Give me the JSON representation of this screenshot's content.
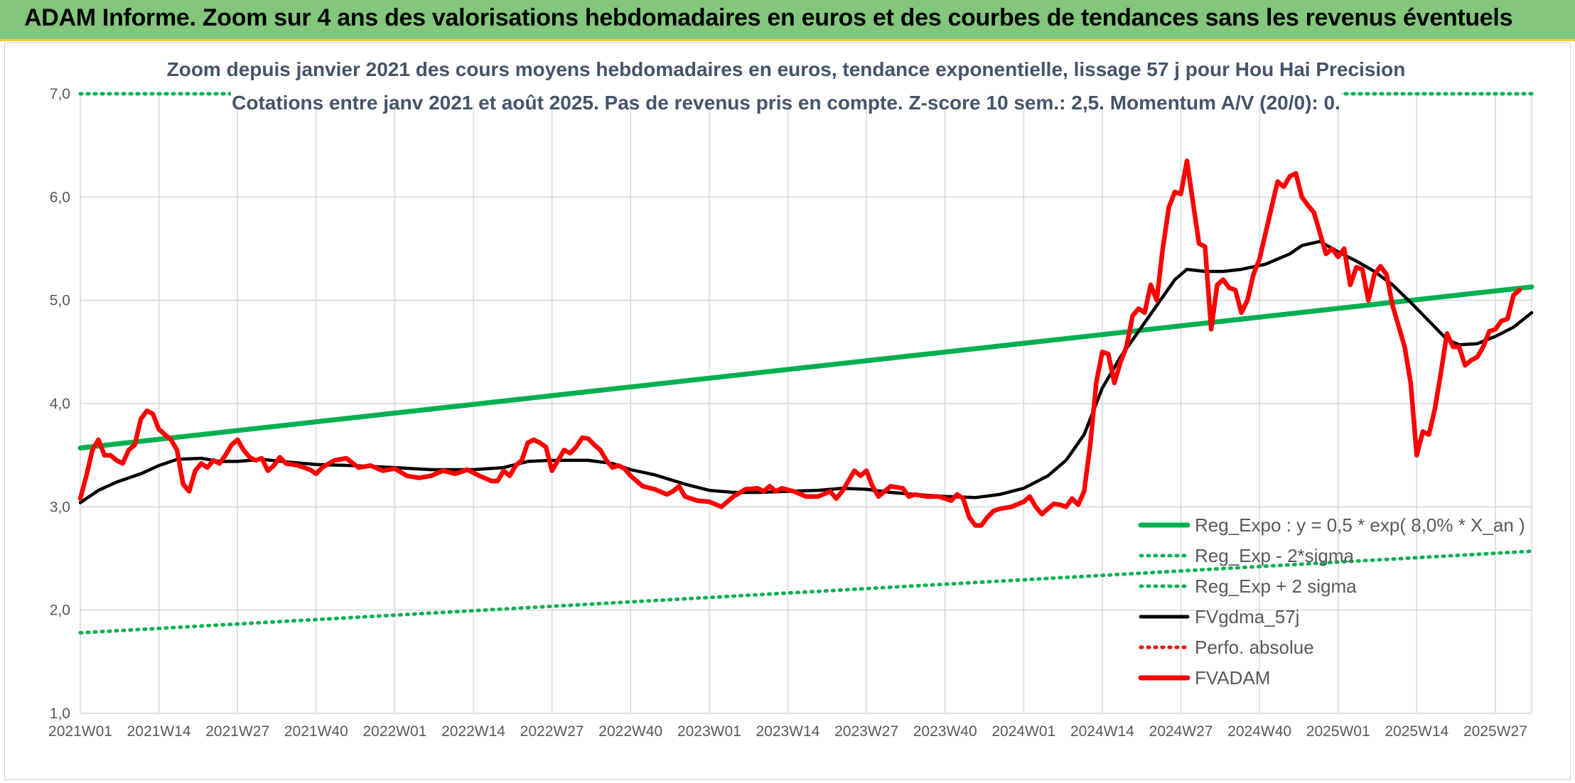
{
  "header": {
    "title": "ADAM Informe. Zoom sur 4 ans des valorisations hebdomadaires en euros et des courbes de tendances sans les revenus éventuels"
  },
  "colors": {
    "header_bg": "#82c77c",
    "header_border": "#f2c84b",
    "reg_expo": "#00b050",
    "fvgdma": "#000000",
    "fvadam": "#ff0000",
    "subtitle": "#44546a",
    "grid": "#d9d9d9"
  },
  "chart_data": {
    "type": "line",
    "title_lines": [
      "Zoom depuis janvier 2021 des cours moyens hebdomadaires en euros, tendance exponentielle, lissage 57 j pour Hou Hai Precision",
      "Cotations entre janv 2021 et août 2025. Pas de revenus pris en compte. Z-score 10 sem.: 2,5. Momentum A/V (20/0): 0."
    ],
    "x_unit": "week index (0 = 2021W01)",
    "x_range": [
      0,
      240
    ],
    "ylim": [
      1.0,
      7.0
    ],
    "y_ticks": [
      "1,0",
      "2,0",
      "3,0",
      "4,0",
      "5,0",
      "6,0",
      "7,0"
    ],
    "x_tick_labels": [
      "2021W01",
      "2021W14",
      "2021W27",
      "2021W40",
      "2022W01",
      "2022W14",
      "2022W27",
      "2022W40",
      "2023W01",
      "2023W14",
      "2023W27",
      "2023W40",
      "2024W01",
      "2024W14",
      "2024W27",
      "2024W40",
      "2025W01",
      "2025W14",
      "2025W27"
    ],
    "x_tick_positions": [
      0,
      13,
      26,
      39,
      52,
      65,
      78,
      91,
      104,
      117,
      130,
      143,
      156,
      169,
      182,
      195,
      208,
      221,
      234
    ],
    "grid": true,
    "legend_position": "bottom-right",
    "legend": [
      {
        "label": "Reg_Expo : y = 0,5 * exp( 8,0% *  X_an )",
        "style": "solid-thick",
        "color": "#00b050"
      },
      {
        "label": "Reg_Exp - 2*sigma",
        "style": "dotted",
        "color": "#00b050"
      },
      {
        "label": "Reg_Exp + 2 sigma",
        "style": "dotted",
        "color": "#00b050"
      },
      {
        "label": "FVgdma_57j",
        "style": "solid",
        "color": "#000000"
      },
      {
        "label": "Perfo. absolue",
        "style": "dotted",
        "color": "#ff0000"
      },
      {
        "label": "FVADAM",
        "style": "solid-thick",
        "color": "#ff0000"
      }
    ],
    "series": [
      {
        "name": "Reg_Expo : y = 0,5 * exp( 8,0% *  X_an )",
        "style": "solid-thick",
        "points": [
          [
            0,
            3.57
          ],
          [
            240,
            5.13
          ]
        ]
      },
      {
        "name": "Reg_Exp - 2*sigma",
        "style": "dotted",
        "points": [
          [
            0,
            1.78
          ],
          [
            240,
            2.57
          ]
        ]
      },
      {
        "name": "Reg_Exp + 2 sigma",
        "style": "dotted",
        "points": [
          [
            0,
            7.0
          ],
          [
            240,
            7.0
          ]
        ]
      },
      {
        "name": "FVgdma_57j",
        "style": "solid",
        "points": [
          [
            0,
            3.04
          ],
          [
            3,
            3.16
          ],
          [
            6,
            3.24
          ],
          [
            10,
            3.32
          ],
          [
            13,
            3.4
          ],
          [
            16,
            3.46
          ],
          [
            20,
            3.47
          ],
          [
            23,
            3.44
          ],
          [
            26,
            3.44
          ],
          [
            30,
            3.46
          ],
          [
            35,
            3.43
          ],
          [
            39,
            3.41
          ],
          [
            45,
            3.4
          ],
          [
            52,
            3.38
          ],
          [
            58,
            3.36
          ],
          [
            65,
            3.36
          ],
          [
            70,
            3.38
          ],
          [
            74,
            3.44
          ],
          [
            78,
            3.45
          ],
          [
            84,
            3.45
          ],
          [
            88,
            3.42
          ],
          [
            91,
            3.36
          ],
          [
            95,
            3.31
          ],
          [
            100,
            3.22
          ],
          [
            104,
            3.16
          ],
          [
            108,
            3.14
          ],
          [
            112,
            3.14
          ],
          [
            117,
            3.15
          ],
          [
            122,
            3.16
          ],
          [
            126,
            3.18
          ],
          [
            130,
            3.17
          ],
          [
            134,
            3.14
          ],
          [
            138,
            3.12
          ],
          [
            143,
            3.1
          ],
          [
            148,
            3.09
          ],
          [
            152,
            3.12
          ],
          [
            156,
            3.18
          ],
          [
            160,
            3.3
          ],
          [
            163,
            3.45
          ],
          [
            166,
            3.7
          ],
          [
            169,
            4.15
          ],
          [
            172,
            4.45
          ],
          [
            175,
            4.7
          ],
          [
            178,
            4.95
          ],
          [
            181,
            5.2
          ],
          [
            183,
            5.3
          ],
          [
            186,
            5.28
          ],
          [
            189,
            5.28
          ],
          [
            192,
            5.3
          ],
          [
            196,
            5.35
          ],
          [
            200,
            5.45
          ],
          [
            202,
            5.53
          ],
          [
            205,
            5.57
          ],
          [
            208,
            5.47
          ],
          [
            211,
            5.38
          ],
          [
            214,
            5.28
          ],
          [
            217,
            5.15
          ],
          [
            220,
            4.98
          ],
          [
            223,
            4.8
          ],
          [
            226,
            4.62
          ],
          [
            228,
            4.57
          ],
          [
            231,
            4.58
          ],
          [
            234,
            4.65
          ],
          [
            237,
            4.74
          ],
          [
            240,
            4.88
          ]
        ]
      },
      {
        "name": "FVADAM",
        "style": "solid-thick",
        "points": [
          [
            0,
            3.08
          ],
          [
            1,
            3.3
          ],
          [
            2,
            3.55
          ],
          [
            3,
            3.65
          ],
          [
            4,
            3.5
          ],
          [
            5,
            3.5
          ],
          [
            6,
            3.45
          ],
          [
            7,
            3.42
          ],
          [
            8,
            3.55
          ],
          [
            9,
            3.6
          ],
          [
            10,
            3.85
          ],
          [
            11,
            3.93
          ],
          [
            12,
            3.9
          ],
          [
            13,
            3.75
          ],
          [
            14,
            3.7
          ],
          [
            15,
            3.65
          ],
          [
            16,
            3.55
          ],
          [
            17,
            3.22
          ],
          [
            18,
            3.15
          ],
          [
            19,
            3.35
          ],
          [
            20,
            3.42
          ],
          [
            21,
            3.38
          ],
          [
            22,
            3.45
          ],
          [
            23,
            3.42
          ],
          [
            24,
            3.5
          ],
          [
            25,
            3.6
          ],
          [
            26,
            3.65
          ],
          [
            27,
            3.55
          ],
          [
            28,
            3.48
          ],
          [
            29,
            3.45
          ],
          [
            30,
            3.47
          ],
          [
            31,
            3.35
          ],
          [
            32,
            3.4
          ],
          [
            33,
            3.48
          ],
          [
            34,
            3.42
          ],
          [
            36,
            3.4
          ],
          [
            38,
            3.36
          ],
          [
            39,
            3.32
          ],
          [
            40,
            3.38
          ],
          [
            42,
            3.45
          ],
          [
            44,
            3.47
          ],
          [
            46,
            3.38
          ],
          [
            48,
            3.4
          ],
          [
            50,
            3.35
          ],
          [
            52,
            3.37
          ],
          [
            54,
            3.3
          ],
          [
            56,
            3.28
          ],
          [
            58,
            3.3
          ],
          [
            60,
            3.35
          ],
          [
            62,
            3.32
          ],
          [
            64,
            3.36
          ],
          [
            66,
            3.3
          ],
          [
            68,
            3.25
          ],
          [
            69,
            3.25
          ],
          [
            70,
            3.35
          ],
          [
            71,
            3.3
          ],
          [
            72,
            3.4
          ],
          [
            73,
            3.45
          ],
          [
            74,
            3.62
          ],
          [
            75,
            3.65
          ],
          [
            76,
            3.62
          ],
          [
            77,
            3.58
          ],
          [
            78,
            3.35
          ],
          [
            79,
            3.45
          ],
          [
            80,
            3.55
          ],
          [
            81,
            3.52
          ],
          [
            82,
            3.58
          ],
          [
            83,
            3.67
          ],
          [
            84,
            3.66
          ],
          [
            85,
            3.6
          ],
          [
            86,
            3.55
          ],
          [
            87,
            3.45
          ],
          [
            88,
            3.38
          ],
          [
            89,
            3.4
          ],
          [
            90,
            3.37
          ],
          [
            91,
            3.3
          ],
          [
            92,
            3.25
          ],
          [
            93,
            3.2
          ],
          [
            95,
            3.17
          ],
          [
            97,
            3.12
          ],
          [
            98,
            3.15
          ],
          [
            99,
            3.2
          ],
          [
            100,
            3.1
          ],
          [
            102,
            3.06
          ],
          [
            104,
            3.05
          ],
          [
            106,
            3.0
          ],
          [
            108,
            3.1
          ],
          [
            110,
            3.17
          ],
          [
            112,
            3.18
          ],
          [
            113,
            3.15
          ],
          [
            114,
            3.2
          ],
          [
            115,
            3.15
          ],
          [
            116,
            3.18
          ],
          [
            118,
            3.15
          ],
          [
            120,
            3.1
          ],
          [
            122,
            3.1
          ],
          [
            124,
            3.15
          ],
          [
            125,
            3.08
          ],
          [
            126,
            3.15
          ],
          [
            127,
            3.25
          ],
          [
            128,
            3.35
          ],
          [
            129,
            3.3
          ],
          [
            130,
            3.35
          ],
          [
            131,
            3.2
          ],
          [
            132,
            3.1
          ],
          [
            133,
            3.15
          ],
          [
            134,
            3.2
          ],
          [
            136,
            3.18
          ],
          [
            137,
            3.1
          ],
          [
            138,
            3.12
          ],
          [
            140,
            3.1
          ],
          [
            142,
            3.1
          ],
          [
            144,
            3.06
          ],
          [
            145,
            3.12
          ],
          [
            146,
            3.08
          ],
          [
            147,
            2.9
          ],
          [
            148,
            2.82
          ],
          [
            149,
            2.82
          ],
          [
            150,
            2.9
          ],
          [
            151,
            2.96
          ],
          [
            152,
            2.98
          ],
          [
            154,
            3.0
          ],
          [
            156,
            3.05
          ],
          [
            157,
            3.1
          ],
          [
            158,
            3.0
          ],
          [
            159,
            2.93
          ],
          [
            160,
            2.98
          ],
          [
            161,
            3.03
          ],
          [
            162,
            3.02
          ],
          [
            163,
            3.0
          ],
          [
            164,
            3.08
          ],
          [
            165,
            3.02
          ],
          [
            166,
            3.15
          ],
          [
            167,
            3.6
          ],
          [
            168,
            4.2
          ],
          [
            169,
            4.5
          ],
          [
            170,
            4.48
          ],
          [
            171,
            4.2
          ],
          [
            172,
            4.4
          ],
          [
            173,
            4.55
          ],
          [
            174,
            4.85
          ],
          [
            175,
            4.92
          ],
          [
            176,
            4.88
          ],
          [
            177,
            5.15
          ],
          [
            178,
            5.0
          ],
          [
            179,
            5.5
          ],
          [
            180,
            5.9
          ],
          [
            181,
            6.05
          ],
          [
            182,
            6.03
          ],
          [
            183,
            6.35
          ],
          [
            184,
            5.95
          ],
          [
            185,
            5.55
          ],
          [
            186,
            5.52
          ],
          [
            187,
            4.72
          ],
          [
            188,
            5.15
          ],
          [
            189,
            5.2
          ],
          [
            190,
            5.12
          ],
          [
            191,
            5.1
          ],
          [
            192,
            4.88
          ],
          [
            193,
            5.0
          ],
          [
            194,
            5.25
          ],
          [
            195,
            5.4
          ],
          [
            196,
            5.65
          ],
          [
            197,
            5.9
          ],
          [
            198,
            6.15
          ],
          [
            199,
            6.1
          ],
          [
            200,
            6.2
          ],
          [
            201,
            6.23
          ],
          [
            202,
            6.0
          ],
          [
            203,
            5.92
          ],
          [
            204,
            5.85
          ],
          [
            205,
            5.65
          ],
          [
            206,
            5.45
          ],
          [
            207,
            5.5
          ],
          [
            208,
            5.42
          ],
          [
            209,
            5.5
          ],
          [
            210,
            5.15
          ],
          [
            211,
            5.32
          ],
          [
            212,
            5.3
          ],
          [
            213,
            5.0
          ],
          [
            214,
            5.25
          ],
          [
            215,
            5.33
          ],
          [
            216,
            5.25
          ],
          [
            217,
            4.95
          ],
          [
            218,
            4.75
          ],
          [
            219,
            4.55
          ],
          [
            220,
            4.2
          ],
          [
            221,
            3.5
          ],
          [
            222,
            3.73
          ],
          [
            223,
            3.7
          ],
          [
            224,
            3.95
          ],
          [
            225,
            4.3
          ],
          [
            226,
            4.68
          ],
          [
            227,
            4.55
          ],
          [
            228,
            4.55
          ],
          [
            229,
            4.37
          ],
          [
            230,
            4.42
          ],
          [
            231,
            4.45
          ],
          [
            232,
            4.55
          ],
          [
            233,
            4.7
          ],
          [
            234,
            4.72
          ],
          [
            235,
            4.8
          ],
          [
            236,
            4.82
          ],
          [
            237,
            5.05
          ],
          [
            238,
            5.1
          ]
        ]
      }
    ]
  }
}
